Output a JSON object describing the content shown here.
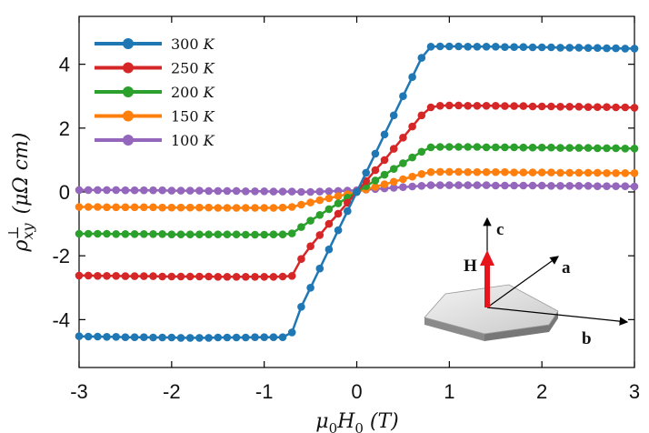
{
  "chart_data": {
    "type": "line",
    "title": "",
    "xlabel": "μ0H0 (T)",
    "ylabel": "ρ⊥xy (μΩ cm)",
    "xlim": [
      -3,
      3
    ],
    "ylim": [
      -5.5,
      5.5
    ],
    "x_ticks": [
      -3,
      -2,
      -1,
      0,
      1,
      2,
      3
    ],
    "x_tick_labels": [
      "-3",
      "-2",
      "-1",
      "0",
      "1",
      "2",
      "3"
    ],
    "y_ticks": [
      -4,
      -2,
      0,
      2,
      4
    ],
    "y_tick_labels": [
      "-4",
      "-2",
      "0",
      "2",
      "4"
    ],
    "grid": false,
    "legend_position": "top-left",
    "series": [
      {
        "name": "300 K",
        "unit_label": "K",
        "value_label": "300",
        "color": "#1f77b4",
        "x_sat": 0.75,
        "saturation": 4.55
      },
      {
        "name": "250 K",
        "unit_label": "K",
        "value_label": "250",
        "color": "#d62728",
        "x_sat": 0.8,
        "saturation": 2.7
      },
      {
        "name": "200 K",
        "unit_label": "K",
        "value_label": "200",
        "color": "#2ca02c",
        "x_sat": 0.78,
        "saturation": 1.4
      },
      {
        "name": "150 K",
        "unit_label": "K",
        "value_label": "150",
        "color": "#ff7f0e",
        "x_sat": 0.72,
        "saturation": 0.6
      },
      {
        "name": "100 K",
        "unit_label": "K",
        "value_label": "100",
        "color": "#9467bd",
        "x_sat": 0.75,
        "saturation": 0.18
      }
    ],
    "x": [
      -3.0,
      -2.9,
      -2.8,
      -2.7,
      -2.6,
      -2.5,
      -2.4,
      -2.3,
      -2.2,
      -2.1,
      -2.0,
      -1.9,
      -1.8,
      -1.7,
      -1.6,
      -1.5,
      -1.4,
      -1.3,
      -1.2,
      -1.1,
      -1.0,
      -0.9,
      -0.8,
      -0.7,
      -0.6,
      -0.5,
      -0.4,
      -0.3,
      -0.2,
      -0.1,
      0.0,
      0.1,
      0.2,
      0.3,
      0.4,
      0.5,
      0.6,
      0.7,
      0.8,
      0.9,
      1.0,
      1.1,
      1.2,
      1.3,
      1.4,
      1.5,
      1.6,
      1.7,
      1.8,
      1.9,
      2.0,
      2.1,
      2.2,
      2.3,
      2.4,
      2.5,
      2.6,
      2.7,
      2.8,
      2.9,
      3.0
    ],
    "values": {
      "300 K": [
        -4.52,
        -4.53,
        -4.53,
        -4.54,
        -4.54,
        -4.55,
        -4.55,
        -4.55,
        -4.56,
        -4.56,
        -4.56,
        -4.57,
        -4.57,
        -4.57,
        -4.57,
        -4.56,
        -4.56,
        -4.56,
        -4.56,
        -4.55,
        -4.55,
        -4.55,
        -4.55,
        -4.4,
        -3.6,
        -3.0,
        -2.4,
        -1.8,
        -1.2,
        -0.6,
        0.0,
        0.6,
        1.2,
        1.8,
        2.4,
        3.0,
        3.6,
        4.2,
        4.55,
        4.56,
        4.56,
        4.56,
        4.55,
        4.55,
        4.55,
        4.55,
        4.54,
        4.54,
        4.54,
        4.53,
        4.53,
        4.53,
        4.52,
        4.52,
        4.52,
        4.51,
        4.51,
        4.5,
        4.5,
        4.49,
        4.49
      ],
      "250 K": [
        -2.62,
        -2.62,
        -2.63,
        -2.63,
        -2.63,
        -2.64,
        -2.64,
        -2.64,
        -2.64,
        -2.65,
        -2.65,
        -2.65,
        -2.65,
        -2.65,
        -2.65,
        -2.66,
        -2.66,
        -2.66,
        -2.66,
        -2.66,
        -2.66,
        -2.66,
        -2.65,
        -2.63,
        -2.1,
        -1.7,
        -1.35,
        -1.0,
        -0.68,
        -0.34,
        0.0,
        0.34,
        0.68,
        1.0,
        1.35,
        1.7,
        2.05,
        2.4,
        2.65,
        2.7,
        2.71,
        2.71,
        2.7,
        2.7,
        2.7,
        2.7,
        2.69,
        2.69,
        2.69,
        2.68,
        2.68,
        2.68,
        2.67,
        2.67,
        2.67,
        2.66,
        2.66,
        2.66,
        2.65,
        2.65,
        2.64
      ],
      "200 K": [
        -1.31,
        -1.31,
        -1.31,
        -1.31,
        -1.32,
        -1.32,
        -1.32,
        -1.32,
        -1.32,
        -1.32,
        -1.33,
        -1.33,
        -1.33,
        -1.33,
        -1.33,
        -1.33,
        -1.33,
        -1.33,
        -1.34,
        -1.34,
        -1.34,
        -1.33,
        -1.33,
        -1.3,
        -1.1,
        -0.9,
        -0.72,
        -0.54,
        -0.36,
        -0.18,
        0.0,
        0.18,
        0.36,
        0.54,
        0.72,
        0.9,
        1.08,
        1.26,
        1.4,
        1.41,
        1.41,
        1.41,
        1.41,
        1.41,
        1.4,
        1.4,
        1.4,
        1.4,
        1.39,
        1.39,
        1.39,
        1.39,
        1.38,
        1.38,
        1.38,
        1.38,
        1.37,
        1.37,
        1.37,
        1.36,
        1.36
      ],
      "150 K": [
        -0.47,
        -0.47,
        -0.47,
        -0.48,
        -0.48,
        -0.48,
        -0.48,
        -0.48,
        -0.48,
        -0.49,
        -0.49,
        -0.49,
        -0.49,
        -0.49,
        -0.49,
        -0.5,
        -0.5,
        -0.5,
        -0.5,
        -0.5,
        -0.5,
        -0.5,
        -0.49,
        -0.47,
        -0.4,
        -0.33,
        -0.26,
        -0.2,
        -0.13,
        -0.07,
        0.0,
        0.08,
        0.16,
        0.24,
        0.32,
        0.4,
        0.48,
        0.56,
        0.62,
        0.63,
        0.63,
        0.63,
        0.62,
        0.62,
        0.62,
        0.62,
        0.62,
        0.61,
        0.61,
        0.61,
        0.61,
        0.61,
        0.6,
        0.6,
        0.6,
        0.6,
        0.6,
        0.59,
        0.59,
        0.59,
        0.59
      ],
      "100 K": [
        0.06,
        0.06,
        0.06,
        0.06,
        0.06,
        0.05,
        0.05,
        0.05,
        0.05,
        0.05,
        0.04,
        0.04,
        0.04,
        0.04,
        0.03,
        0.03,
        0.03,
        0.03,
        0.02,
        0.02,
        0.02,
        0.01,
        0.01,
        0.01,
        0.0,
        0.0,
        0.01,
        0.02,
        0.03,
        0.04,
        0.05,
        0.07,
        0.09,
        0.11,
        0.13,
        0.15,
        0.17,
        0.19,
        0.21,
        0.21,
        0.21,
        0.21,
        0.21,
        0.21,
        0.21,
        0.2,
        0.2,
        0.2,
        0.2,
        0.2,
        0.2,
        0.19,
        0.19,
        0.19,
        0.19,
        0.19,
        0.18,
        0.18,
        0.18,
        0.18,
        0.17
      ]
    },
    "inset": {
      "labels": {
        "c": "c",
        "a": "a",
        "b": "b",
        "H": "H"
      },
      "arrow_color": "#e8141b"
    }
  }
}
